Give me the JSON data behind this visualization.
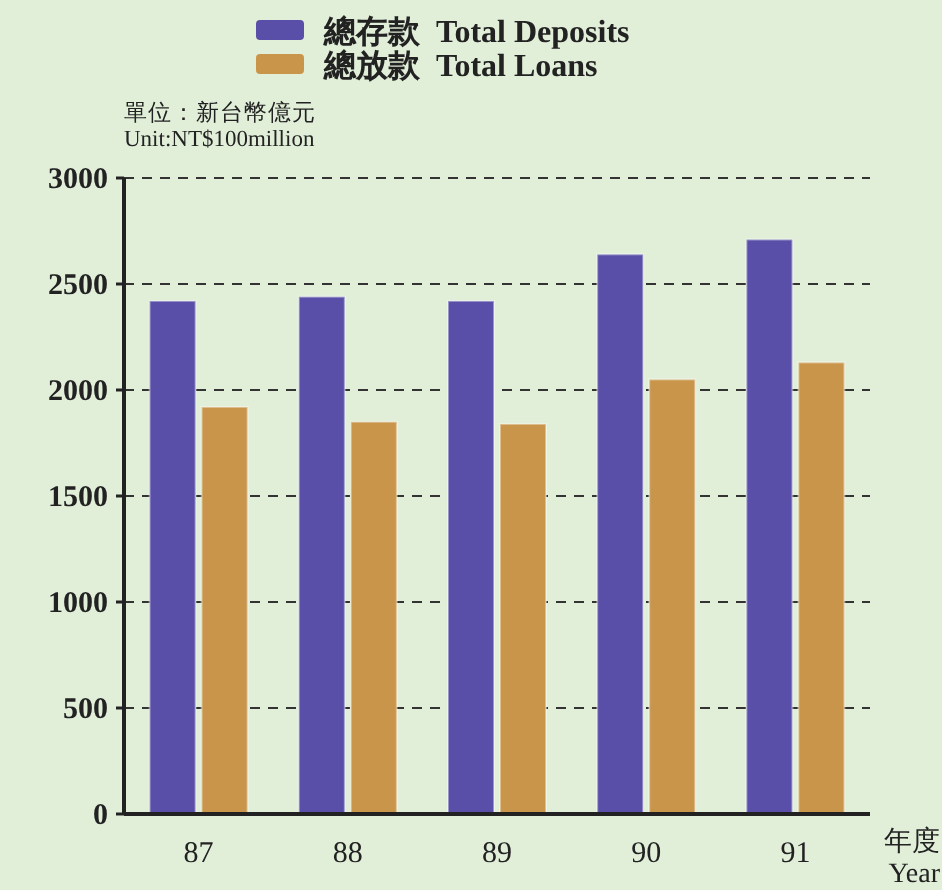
{
  "chart_data": {
    "type": "bar",
    "categories": [
      "87",
      "88",
      "89",
      "90",
      "91"
    ],
    "series": [
      {
        "name": "總存款  Total Deposits",
        "color": "#5a4fa8",
        "values": [
          2420,
          2440,
          2420,
          2640,
          2710
        ]
      },
      {
        "name": "總放款  Total Loans",
        "color": "#c8954a",
        "values": [
          1920,
          1850,
          1840,
          2050,
          2130
        ]
      }
    ],
    "ylim": [
      0,
      3000
    ],
    "yticks": [
      0,
      500,
      1000,
      1500,
      2000,
      2500,
      3000
    ],
    "grid": "y",
    "legend": "top",
    "xlabel": "年度\nYear",
    "annotations": [
      "單位：新台幣億元",
      "Unit:NT$100million"
    ]
  }
}
